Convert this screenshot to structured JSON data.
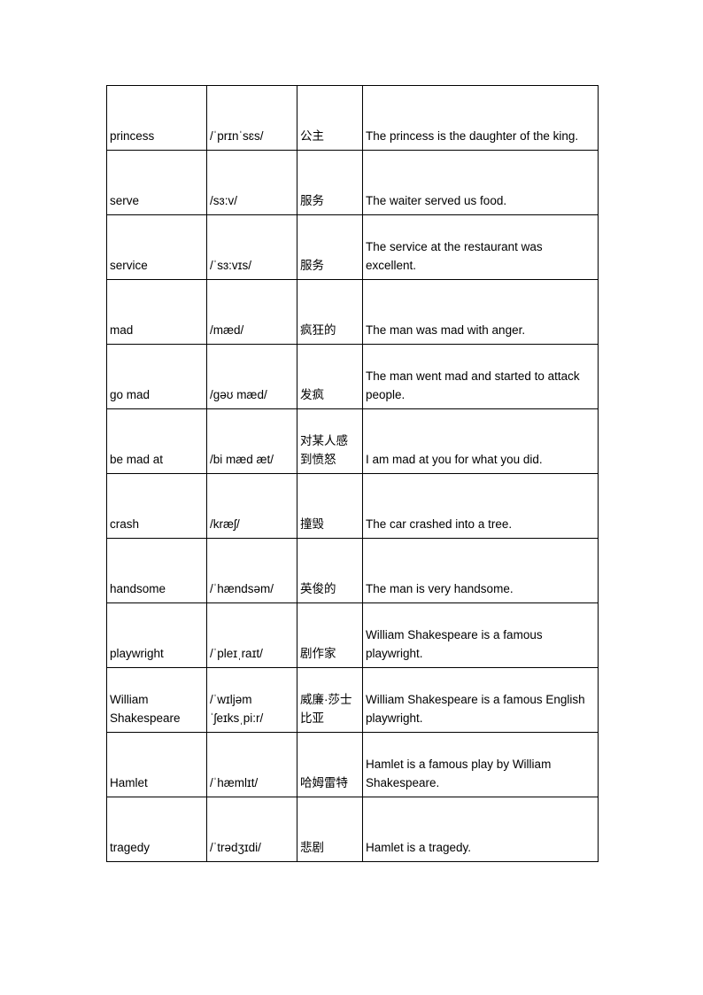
{
  "page": {
    "background_color": "#ffffff",
    "text_color": "#000000",
    "table_border_color": "#000000"
  },
  "table": {
    "columns": [
      "word",
      "phonetic",
      "chinese",
      "example"
    ],
    "rows": [
      {
        "word": "princess",
        "phonetic": "/ˈprɪnˈsɛs/",
        "chinese": "公主",
        "example": "The princess is the daughter of the king."
      },
      {
        "word": "serve",
        "phonetic": "/sɜ:v/",
        "chinese": "服务",
        "example": "The waiter served us food."
      },
      {
        "word": "service",
        "phonetic": "/ˈsɜ:vɪs/",
        "chinese": "服务",
        "example": "The service at the restaurant was\nexcellent."
      },
      {
        "word": "mad",
        "phonetic": "/mæd/",
        "chinese": "疯狂的",
        "example": "The man was mad with anger."
      },
      {
        "word": "go mad",
        "phonetic": "/gəʊ mæd/",
        "chinese": "发疯",
        "example": "The man went mad and started to attack\npeople."
      },
      {
        "word": "be mad at",
        "phonetic": "/bi mæd æt/",
        "chinese": "对某人感\n到愤怒",
        "example": "I am mad at you for what you did."
      },
      {
        "word": "crash",
        "phonetic": "/kræʃ/",
        "chinese": "撞毁",
        "example": "The car crashed into a tree."
      },
      {
        "word": "handsome",
        "phonetic": "/ˈhændsəm/",
        "chinese": "英俊的",
        "example": "The man is very handsome."
      },
      {
        "word": "playwright",
        "phonetic": "/ˈpleɪˌraɪt/",
        "chinese": "剧作家",
        "example": "William Shakespeare is a famous\nplaywright."
      },
      {
        "word": "William\nShakespeare",
        "phonetic": "/ˈwɪljəm\nˈʃeɪksˌpi:r/",
        "chinese": "威廉·莎士\n比亚",
        "example": "William Shakespeare is a famous English\nplaywright."
      },
      {
        "word": "Hamlet",
        "phonetic": "/ˈhæmlɪt/",
        "chinese": "哈姆雷特",
        "example": "Hamlet is a famous play by William\nShakespeare."
      },
      {
        "word": "tragedy",
        "phonetic": "/ˈtrədʒɪdi/",
        "chinese": "悲剧",
        "example": "Hamlet is a tragedy."
      }
    ]
  }
}
